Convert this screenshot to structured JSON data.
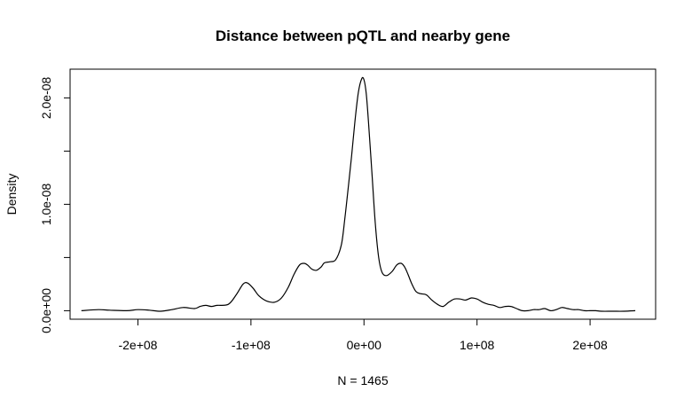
{
  "chart_data": {
    "type": "line",
    "title": "Distance between pQTL and nearby gene",
    "xlabel": "N = 1465",
    "ylabel": "Density",
    "xlim": [
      -260000000,
      258000000
    ],
    "ylim": [
      -8e-10,
      2.27e-08
    ],
    "x_ticks": [
      {
        "value": -200000000,
        "label": "-2e+08"
      },
      {
        "value": -100000000,
        "label": "-1e+08"
      },
      {
        "value": 0,
        "label": "0e+00"
      },
      {
        "value": 100000000,
        "label": "1e+08"
      },
      {
        "value": 200000000,
        "label": "2e+08"
      }
    ],
    "y_ticks": [
      {
        "value": 0,
        "label": "0.0e+00"
      },
      {
        "value": 5e-09,
        "label": ""
      },
      {
        "value": 1e-08,
        "label": "1.0e-08"
      },
      {
        "value": 1.5e-08,
        "label": ""
      },
      {
        "value": 2e-08,
        "label": "2.0e-08"
      }
    ],
    "grid": false,
    "series": [
      {
        "x": [
          -250000000,
          -235000000,
          -225000000,
          -210000000,
          -200000000,
          -190000000,
          -180000000,
          -170000000,
          -160000000,
          -150000000,
          -145000000,
          -140000000,
          -135000000,
          -130000000,
          -120000000,
          -113000000,
          -107000000,
          -103000000,
          -98000000,
          -93000000,
          -86000000,
          -79000000,
          -73000000,
          -67000000,
          -62000000,
          -57000000,
          -53000000,
          -50000000,
          -46000000,
          -42000000,
          -38000000,
          -35000000,
          -30000000,
          -25000000,
          -20000000,
          -17000000,
          -14000000,
          -11000000,
          -8000000,
          -5000000,
          -2000000,
          0,
          2000000,
          4000000,
          7000000,
          10000000,
          13000000,
          16000000,
          20000000,
          25000000,
          29000000,
          33000000,
          36000000,
          39000000,
          42000000,
          46000000,
          50000000,
          55000000,
          60000000,
          65000000,
          70000000,
          75000000,
          80000000,
          85000000,
          90000000,
          95000000,
          100000000,
          105000000,
          110000000,
          115000000,
          120000000,
          125000000,
          130000000,
          135000000,
          140000000,
          145000000,
          150000000,
          155000000,
          160000000,
          165000000,
          170000000,
          175000000,
          180000000,
          185000000,
          190000000,
          195000000,
          200000000,
          205000000,
          210000000,
          220000000,
          230000000,
          240000000
        ],
        "y": [
          0.0,
          1e-10,
          5e-11,
          0.0,
          1e-10,
          5e-11,
          -5e-11,
          1e-10,
          3e-10,
          2e-10,
          4e-10,
          5e-10,
          4e-10,
          5e-10,
          6e-10,
          1.5e-09,
          2.5e-09,
          2.6e-09,
          2.1e-09,
          1.4e-09,
          9e-10,
          8e-10,
          1.2e-09,
          2.2e-09,
          3.4e-09,
          4.3e-09,
          4.45e-09,
          4.3e-09,
          3.9e-09,
          3.8e-09,
          4.1e-09,
          4.5e-09,
          4.6e-09,
          4.8e-09,
          6.2e-09,
          8.6e-09,
          1.15e-08,
          1.45e-08,
          1.78e-08,
          2.05e-08,
          2.18e-08,
          2.17e-08,
          2.04e-08,
          1.77e-08,
          1.3e-08,
          8.2e-09,
          5e-09,
          3.6e-09,
          3.3e-09,
          3.7e-09,
          4.3e-09,
          4.45e-09,
          4.1e-09,
          3.4e-09,
          2.6e-09,
          1.8e-09,
          1.6e-09,
          1.5e-09,
          1e-09,
          6e-10,
          4e-10,
          8e-10,
          1.1e-09,
          1.1e-09,
          1e-09,
          1.2e-09,
          1.1e-09,
          8e-10,
          6e-10,
          5e-10,
          3e-10,
          4e-10,
          4e-10,
          2e-10,
          0.0,
          0.0,
          1e-10,
          1e-10,
          2e-10,
          0.0,
          1e-10,
          3e-10,
          2e-10,
          1e-10,
          1e-10,
          0.0,
          0.0,
          0.0,
          -5e-11,
          -5e-11,
          -5e-11,
          0.0
        ]
      }
    ]
  }
}
